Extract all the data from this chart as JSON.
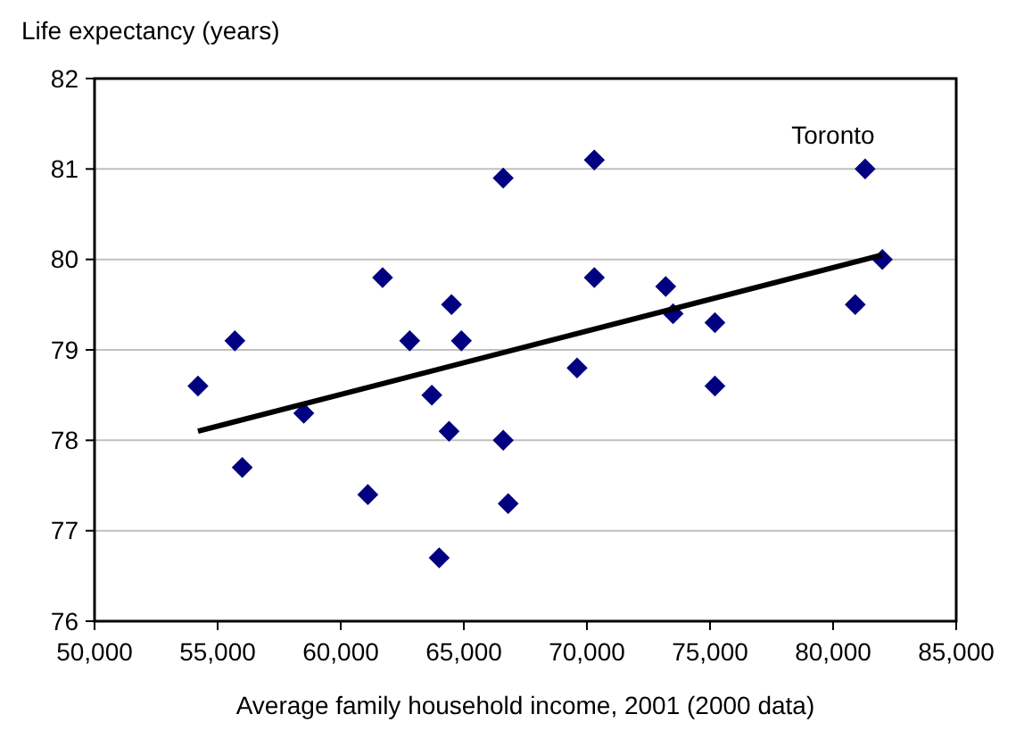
{
  "chart_data": {
    "type": "scatter",
    "ylabel": "Life expectancy (years)",
    "xlabel": "Average family household income, 2001 (2000 data)",
    "xlim": [
      50000,
      85000
    ],
    "xticks": [
      {
        "value": 50000,
        "label": "50,000"
      },
      {
        "value": 55000,
        "label": "55,000"
      },
      {
        "value": 60000,
        "label": "60,000"
      },
      {
        "value": 65000,
        "label": "65,000"
      },
      {
        "value": 70000,
        "label": "70,000"
      },
      {
        "value": 75000,
        "label": "75,000"
      },
      {
        "value": 80000,
        "label": "80,000"
      },
      {
        "value": 85000,
        "label": "85,000"
      }
    ],
    "ylim": [
      76,
      82
    ],
    "yticks": [
      76,
      77,
      78,
      79,
      80,
      81,
      82
    ],
    "grid": "y",
    "series": [
      {
        "marker": "diamond",
        "color": "#000080",
        "x": [
          54200,
          55700,
          56000,
          58500,
          61100,
          61700,
          62800,
          63700,
          64000,
          64500,
          64400,
          64900,
          66600,
          66600,
          66800,
          69600,
          70300,
          70300,
          73200,
          73500,
          75200,
          75200,
          80900,
          81300,
          82000
        ],
        "values": [
          78.6,
          79.1,
          77.7,
          78.3,
          77.4,
          79.8,
          79.1,
          78.5,
          76.7,
          79.5,
          78.1,
          79.1,
          80.9,
          78.0,
          77.3,
          78.8,
          81.1,
          79.8,
          79.7,
          79.4,
          79.3,
          78.6,
          79.5,
          81.0,
          80.0
        ]
      },
      {
        "type": "line",
        "color": "#000000",
        "x": [
          54200,
          82000
        ],
        "values": [
          78.1,
          80.05
        ]
      }
    ],
    "annotations": [
      {
        "text": "Toronto",
        "x": 81300,
        "y": 81.0
      }
    ]
  }
}
